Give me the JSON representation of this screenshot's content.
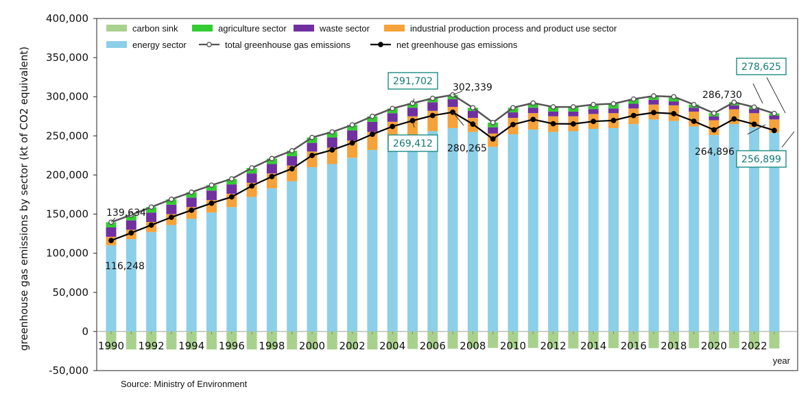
{
  "source": "Source: Ministry of Environment",
  "chart_data": {
    "type": "bar",
    "stacked": true,
    "ylabel": "greenhouse gas emissions by sector (kt of CO2 equivalent)",
    "xlabel": "year",
    "ylim": [
      -50000,
      400000
    ],
    "yticks": [
      -50000,
      0,
      50000,
      100000,
      150000,
      200000,
      250000,
      300000,
      350000,
      400000
    ],
    "ytick_labels": [
      "-50,000",
      "0",
      "50,000",
      "100,000",
      "150,000",
      "200,000",
      "250,000",
      "300,000",
      "350,000",
      "400,000"
    ],
    "legend_position": "top",
    "categories": [
      "1990",
      "1991",
      "1992",
      "1993",
      "1994",
      "1995",
      "1996",
      "1997",
      "1998",
      "1999",
      "2000",
      "2001",
      "2002",
      "2003",
      "2004",
      "2005",
      "2006",
      "2007",
      "2008",
      "2009",
      "2010",
      "2011",
      "2012",
      "2013",
      "2014",
      "2015",
      "2016",
      "2017",
      "2018",
      "2019",
      "2020",
      "2021",
      "2022",
      "2023"
    ],
    "xtick_labels": [
      "1990",
      "1992",
      "1994",
      "1996",
      "1998",
      "2000",
      "2002",
      "2004",
      "2006",
      "2008",
      "2010",
      "2012",
      "2014",
      "2016",
      "2018",
      "2020",
      "2022"
    ],
    "series": [
      {
        "name": "carbon sink",
        "kind": "bar",
        "color": "#a9d18e",
        "values": [
          -23000,
          -23000,
          -23000,
          -23000,
          -23000,
          -23000,
          -23000,
          -23000,
          -23000,
          -23000,
          -23000,
          -23000,
          -23000,
          -23000,
          -23000,
          -22400,
          -22000,
          -22000,
          -21000,
          -21000,
          -21600,
          -21000,
          -21500,
          -21700,
          -21500,
          -21300,
          -21000,
          -21300,
          -21600,
          -21300,
          -21400,
          -21400,
          -21800,
          -21700
        ]
      },
      {
        "name": "energy sector",
        "kind": "bar",
        "color": "#8ccfe8",
        "values": [
          110000,
          118000,
          127000,
          136000,
          144000,
          152000,
          159000,
          172000,
          183000,
          192000,
          210000,
          214000,
          222000,
          232000,
          244000,
          250000,
          256000,
          260000,
          255000,
          236000,
          252000,
          258000,
          255000,
          256000,
          259000,
          260000,
          265000,
          271000,
          269000,
          262000,
          251000,
          265000,
          261000,
          254000
        ]
      },
      {
        "name": "industrial production process and product use sector",
        "kind": "bar",
        "color": "#f5a23a",
        "values": [
          11000,
          12000,
          13000,
          14000,
          15000,
          16000,
          17000,
          18000,
          19000,
          20000,
          20000,
          21000,
          22000,
          23000,
          24000,
          25000,
          26000,
          27000,
          18000,
          17000,
          21000,
          21000,
          20000,
          19000,
          19000,
          19000,
          20000,
          19000,
          20000,
          19000,
          19000,
          19000,
          18000,
          17000
        ]
      },
      {
        "name": "waste sector",
        "kind": "bar",
        "color": "#7030a0",
        "values": [
          12000,
          12000,
          12000,
          12000,
          12000,
          12000,
          12000,
          12000,
          12000,
          12000,
          11000,
          13000,
          13000,
          13000,
          11000,
          11000,
          11000,
          10000,
          9000,
          8000,
          7000,
          7000,
          6000,
          6000,
          6000,
          6000,
          6000,
          6000,
          5000,
          5000,
          5000,
          5000,
          5000,
          5000
        ]
      },
      {
        "name": "agriculture sector",
        "kind": "bar",
        "color": "#33cc33",
        "values": [
          6634,
          7000,
          7000,
          7000,
          7000,
          7000,
          7000,
          7000,
          7000,
          7000,
          7000,
          7000,
          7000,
          7000,
          6000,
          5702,
          5000,
          5339,
          4000,
          6000,
          6000,
          6000,
          6000,
          6000,
          6000,
          6000,
          6000,
          5000,
          5000,
          4000,
          4000,
          4000,
          2730,
          2625
        ]
      },
      {
        "name": "total greenhouse gas emissions",
        "kind": "line",
        "color": "#555555",
        "values": [
          139634,
          149000,
          159000,
          169000,
          178000,
          187000,
          195000,
          209000,
          221000,
          231000,
          248000,
          255000,
          264000,
          275000,
          285000,
          291702,
          298000,
          302339,
          286000,
          267000,
          286000,
          292000,
          287000,
          287000,
          290000,
          291000,
          297000,
          301000,
          300000,
          290000,
          279000,
          293000,
          286730,
          278625
        ]
      },
      {
        "name": "net greenhouse gas emissions",
        "kind": "line",
        "color": "#000000",
        "values": [
          116248,
          126000,
          136000,
          146000,
          155000,
          164000,
          172000,
          186000,
          198000,
          208000,
          225000,
          232000,
          241000,
          252000,
          262000,
          269412,
          276000,
          280265,
          265000,
          246000,
          264500,
          271000,
          265500,
          265300,
          268500,
          269700,
          276000,
          279700,
          278400,
          268700,
          257600,
          271600,
          264896,
          256899
        ]
      }
    ],
    "annotations": [
      {
        "text": "139,634",
        "x": "1990",
        "series": "total greenhouse gas emissions",
        "boxed": false
      },
      {
        "text": "116,248",
        "x": "1990",
        "series": "net greenhouse gas emissions",
        "boxed": false
      },
      {
        "text": "291,702",
        "x": "2005",
        "series": "total greenhouse gas emissions",
        "boxed": true
      },
      {
        "text": "302,339",
        "x": "2007",
        "series": "total greenhouse gas emissions",
        "boxed": false
      },
      {
        "text": "269,412",
        "x": "2005",
        "series": "net greenhouse gas emissions",
        "boxed": true
      },
      {
        "text": "280,265",
        "x": "2007",
        "series": "net greenhouse gas emissions",
        "boxed": false
      },
      {
        "text": "286,730",
        "x": "2022",
        "series": "total greenhouse gas emissions",
        "boxed": false
      },
      {
        "text": "278,625",
        "x": "2023",
        "series": "total greenhouse gas emissions",
        "boxed": true
      },
      {
        "text": "264,896",
        "x": "2022",
        "series": "net greenhouse gas emissions",
        "boxed": false
      },
      {
        "text": "256,899",
        "x": "2023",
        "series": "net greenhouse gas emissions",
        "boxed": true
      }
    ]
  }
}
